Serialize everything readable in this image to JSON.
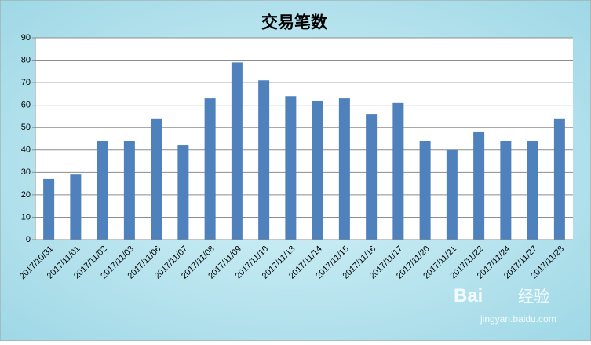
{
  "chart_data": {
    "type": "bar",
    "title": "交易笔数",
    "categories": [
      "2017/10/31",
      "2017/11/01",
      "2017/11/02",
      "2017/11/03",
      "2017/11/06",
      "2017/11/07",
      "2017/11/08",
      "2017/11/09",
      "2017/11/10",
      "2017/11/13",
      "2017/11/14",
      "2017/11/15",
      "2017/11/16",
      "2017/11/17",
      "2017/11/20",
      "2017/11/21",
      "2017/11/22",
      "2017/11/24",
      "2017/11/27",
      "2017/11/28"
    ],
    "values": [
      27,
      29,
      44,
      44,
      54,
      42,
      63,
      79,
      71,
      64,
      62,
      63,
      56,
      61,
      44,
      40,
      48,
      44,
      44,
      54
    ],
    "color": "#4f81bd",
    "ylim": [
      0,
      90
    ],
    "yticks": [
      0,
      10,
      20,
      30,
      40,
      50,
      60,
      70,
      80,
      90
    ],
    "grid": true
  },
  "watermark": {
    "brand": "Bai",
    "product": "经验",
    "url": "jingyan.baidu.com"
  }
}
